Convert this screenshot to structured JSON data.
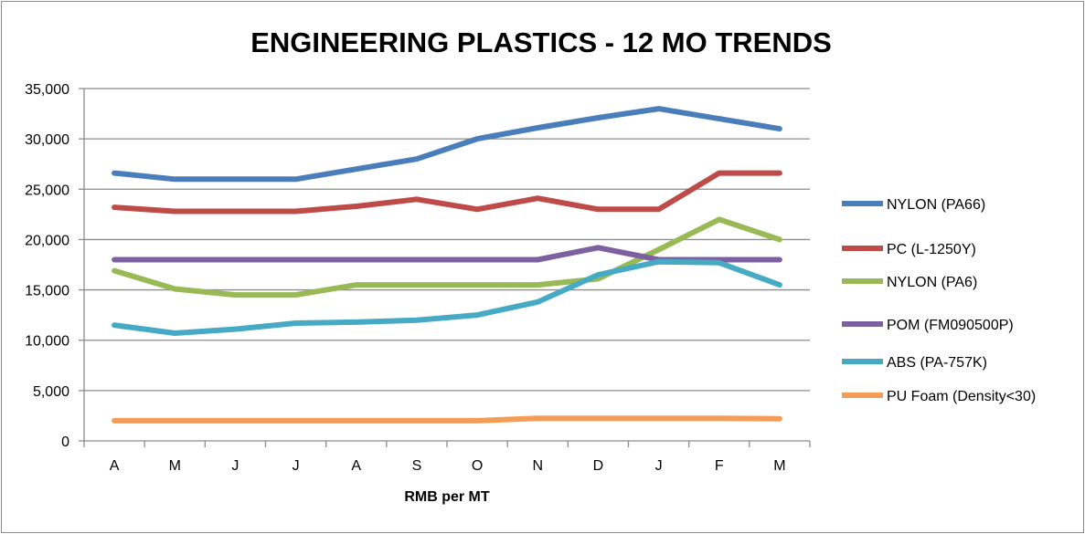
{
  "chart_data": {
    "type": "line",
    "title": "ENGINEERING PLASTICS - 12 MO TRENDS",
    "xlabel": "RMB per MT",
    "ylabel": "",
    "ylim": [
      0,
      35000
    ],
    "yticks": [
      0,
      5000,
      10000,
      15000,
      20000,
      25000,
      30000,
      35000
    ],
    "ytick_labels": [
      "0",
      "5,000",
      "10,000",
      "15,000",
      "20,000",
      "25,000",
      "30,000",
      "35,000"
    ],
    "categories": [
      "A",
      "M",
      "J",
      "J",
      "A",
      "S",
      "O",
      "N",
      "D",
      "J",
      "F",
      "M"
    ],
    "grid": "horizontal",
    "legend_position": "right",
    "series": [
      {
        "name": "NYLON (PA66)",
        "color": "#4a7ebb",
        "values": [
          26600,
          26000,
          26000,
          26000,
          27000,
          28000,
          30000,
          31100,
          32100,
          33000,
          32000,
          31000
        ]
      },
      {
        "name": "PC (L-1250Y)",
        "color": "#be4b48",
        "values": [
          23200,
          22800,
          22800,
          22800,
          23300,
          24000,
          23000,
          24100,
          23000,
          23000,
          26600,
          26600
        ]
      },
      {
        "name": "NYLON (PA6)",
        "color": "#98b954",
        "values": [
          16900,
          15100,
          14500,
          14500,
          15500,
          15500,
          15500,
          15500,
          16100,
          19000,
          22000,
          20000
        ]
      },
      {
        "name": "POM (FM090500P)",
        "color": "#7d60a0",
        "values": [
          18000,
          18000,
          18000,
          18000,
          18000,
          18000,
          18000,
          18000,
          19200,
          18000,
          18000,
          18000
        ]
      },
      {
        "name": "ABS (PA-757K)",
        "color": "#46aac5",
        "values": [
          11500,
          10700,
          11100,
          11700,
          11800,
          12000,
          12500,
          13800,
          16500,
          17800,
          17700,
          15500
        ]
      },
      {
        "name": "PU Foam (Density<30)",
        "color": "#f59d56",
        "values": [
          2000,
          2000,
          2000,
          2000,
          2000,
          2000,
          2000,
          2250,
          2250,
          2250,
          2250,
          2200
        ]
      }
    ]
  }
}
